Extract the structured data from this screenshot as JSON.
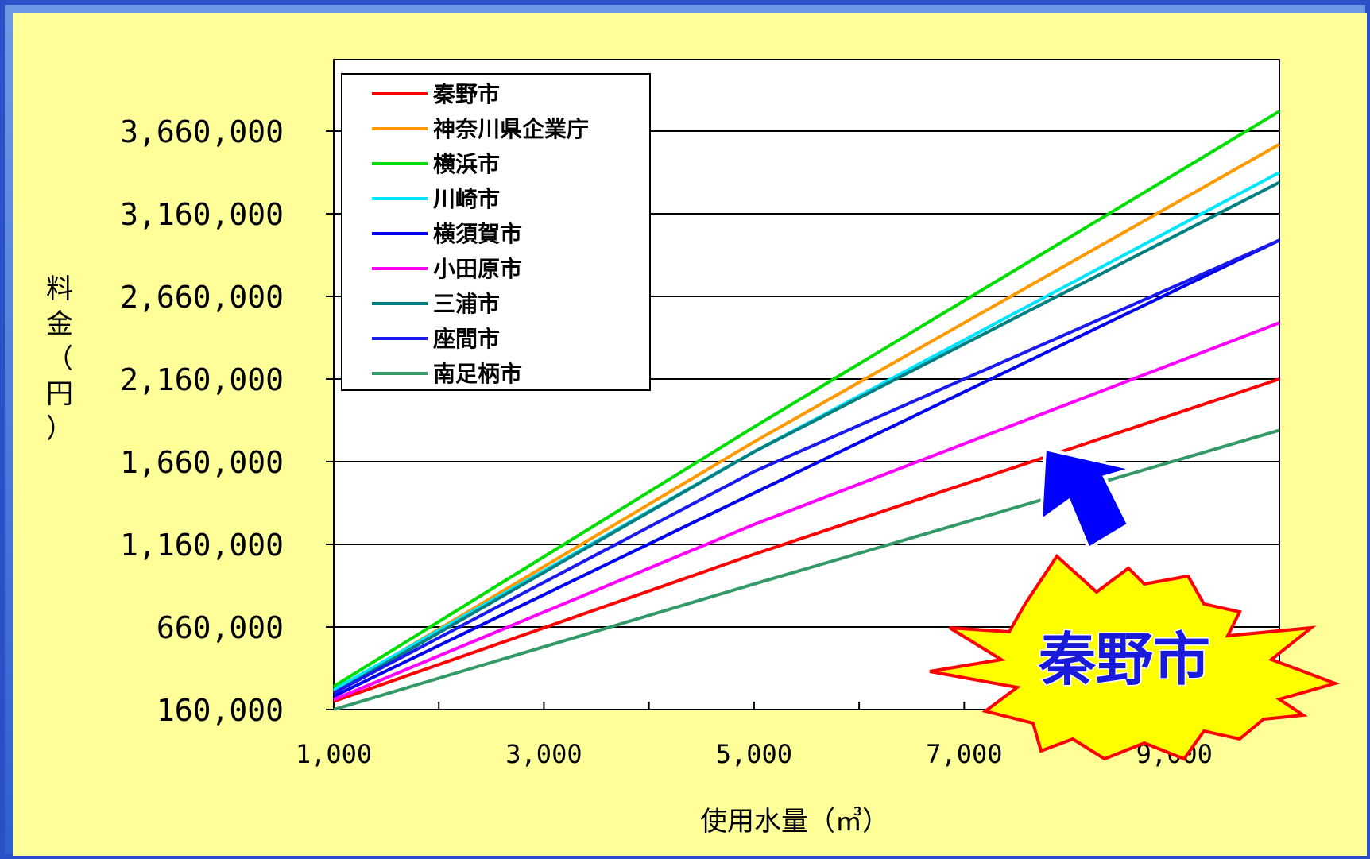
{
  "chart_data": {
    "type": "line",
    "xlabel": "使用水量（㎥）",
    "ylabel": "料金（円）",
    "x": [
      1000,
      5000,
      10000
    ],
    "x_ticks": [
      "1,000",
      "3,000",
      "5,000",
      "7,000",
      "9,000"
    ],
    "y_ticks": [
      "160,000",
      "660,000",
      "1,160,000",
      "1,660,000",
      "2,160,000",
      "2,660,000",
      "3,160,000",
      "3,660,000"
    ],
    "xlim": [
      1000,
      10000
    ],
    "ylim": [
      160000,
      3660000
    ],
    "grid": "horizontal",
    "legend_position": "top-left",
    "series": [
      {
        "name": "秦野市",
        "color": "#ff0000",
        "values": [
          210000,
          1100000,
          2160000
        ]
      },
      {
        "name": "神奈川県企業庁",
        "color": "#ff9900",
        "values": [
          270000,
          1780000,
          3580000
        ]
      },
      {
        "name": "横浜市",
        "color": "#00dd00",
        "values": [
          300000,
          1870000,
          3780000
        ]
      },
      {
        "name": "川崎市",
        "color": "#00e5ff",
        "values": [
          280000,
          1720000,
          3410000
        ]
      },
      {
        "name": "横須賀市",
        "color": "#0000ee",
        "values": [
          240000,
          1470000,
          3000000
        ]
      },
      {
        "name": "小田原市",
        "color": "#ff00ff",
        "values": [
          220000,
          1280000,
          2500000
        ]
      },
      {
        "name": "三浦市",
        "color": "#008080",
        "values": [
          260000,
          1720000,
          3350000
        ]
      },
      {
        "name": "座間市",
        "color": "#1a1aee",
        "values": [
          260000,
          1600000,
          3000000
        ]
      },
      {
        "name": "南足柄市",
        "color": "#339966",
        "values": [
          160000,
          920000,
          1850000
        ]
      }
    ]
  },
  "callout": {
    "label": "秦野市",
    "fill": "#ffff00",
    "stroke": "#ff0000",
    "arrow_color": "#0000ff"
  }
}
